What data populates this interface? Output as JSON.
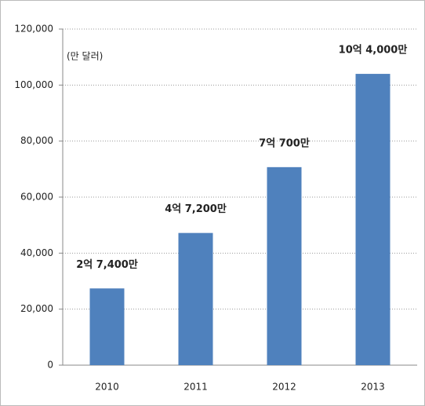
{
  "chart_data": {
    "type": "bar",
    "annotation": "(만 달러)",
    "categories": [
      "2010",
      "2011",
      "2012",
      "2013"
    ],
    "values": [
      27400,
      47200,
      70700,
      104000
    ],
    "value_labels": [
      "2억 7,400만",
      "4억 7,200만",
      "7억 700만",
      "10억 4,000만"
    ],
    "color": "#4f81bd",
    "ylim": [
      0,
      120000
    ],
    "yticks": [
      0,
      {
        "value": 20000,
        "label": "20,000"
      },
      {
        "value": 40000,
        "label": "40,000"
      },
      {
        "value": 60000,
        "label": "60,000"
      },
      {
        "value": 80000,
        "label": "80,000"
      },
      {
        "value": 100000,
        "label": "100,000"
      },
      {
        "value": 120000,
        "label": "120,000"
      }
    ],
    "grid": true
  }
}
